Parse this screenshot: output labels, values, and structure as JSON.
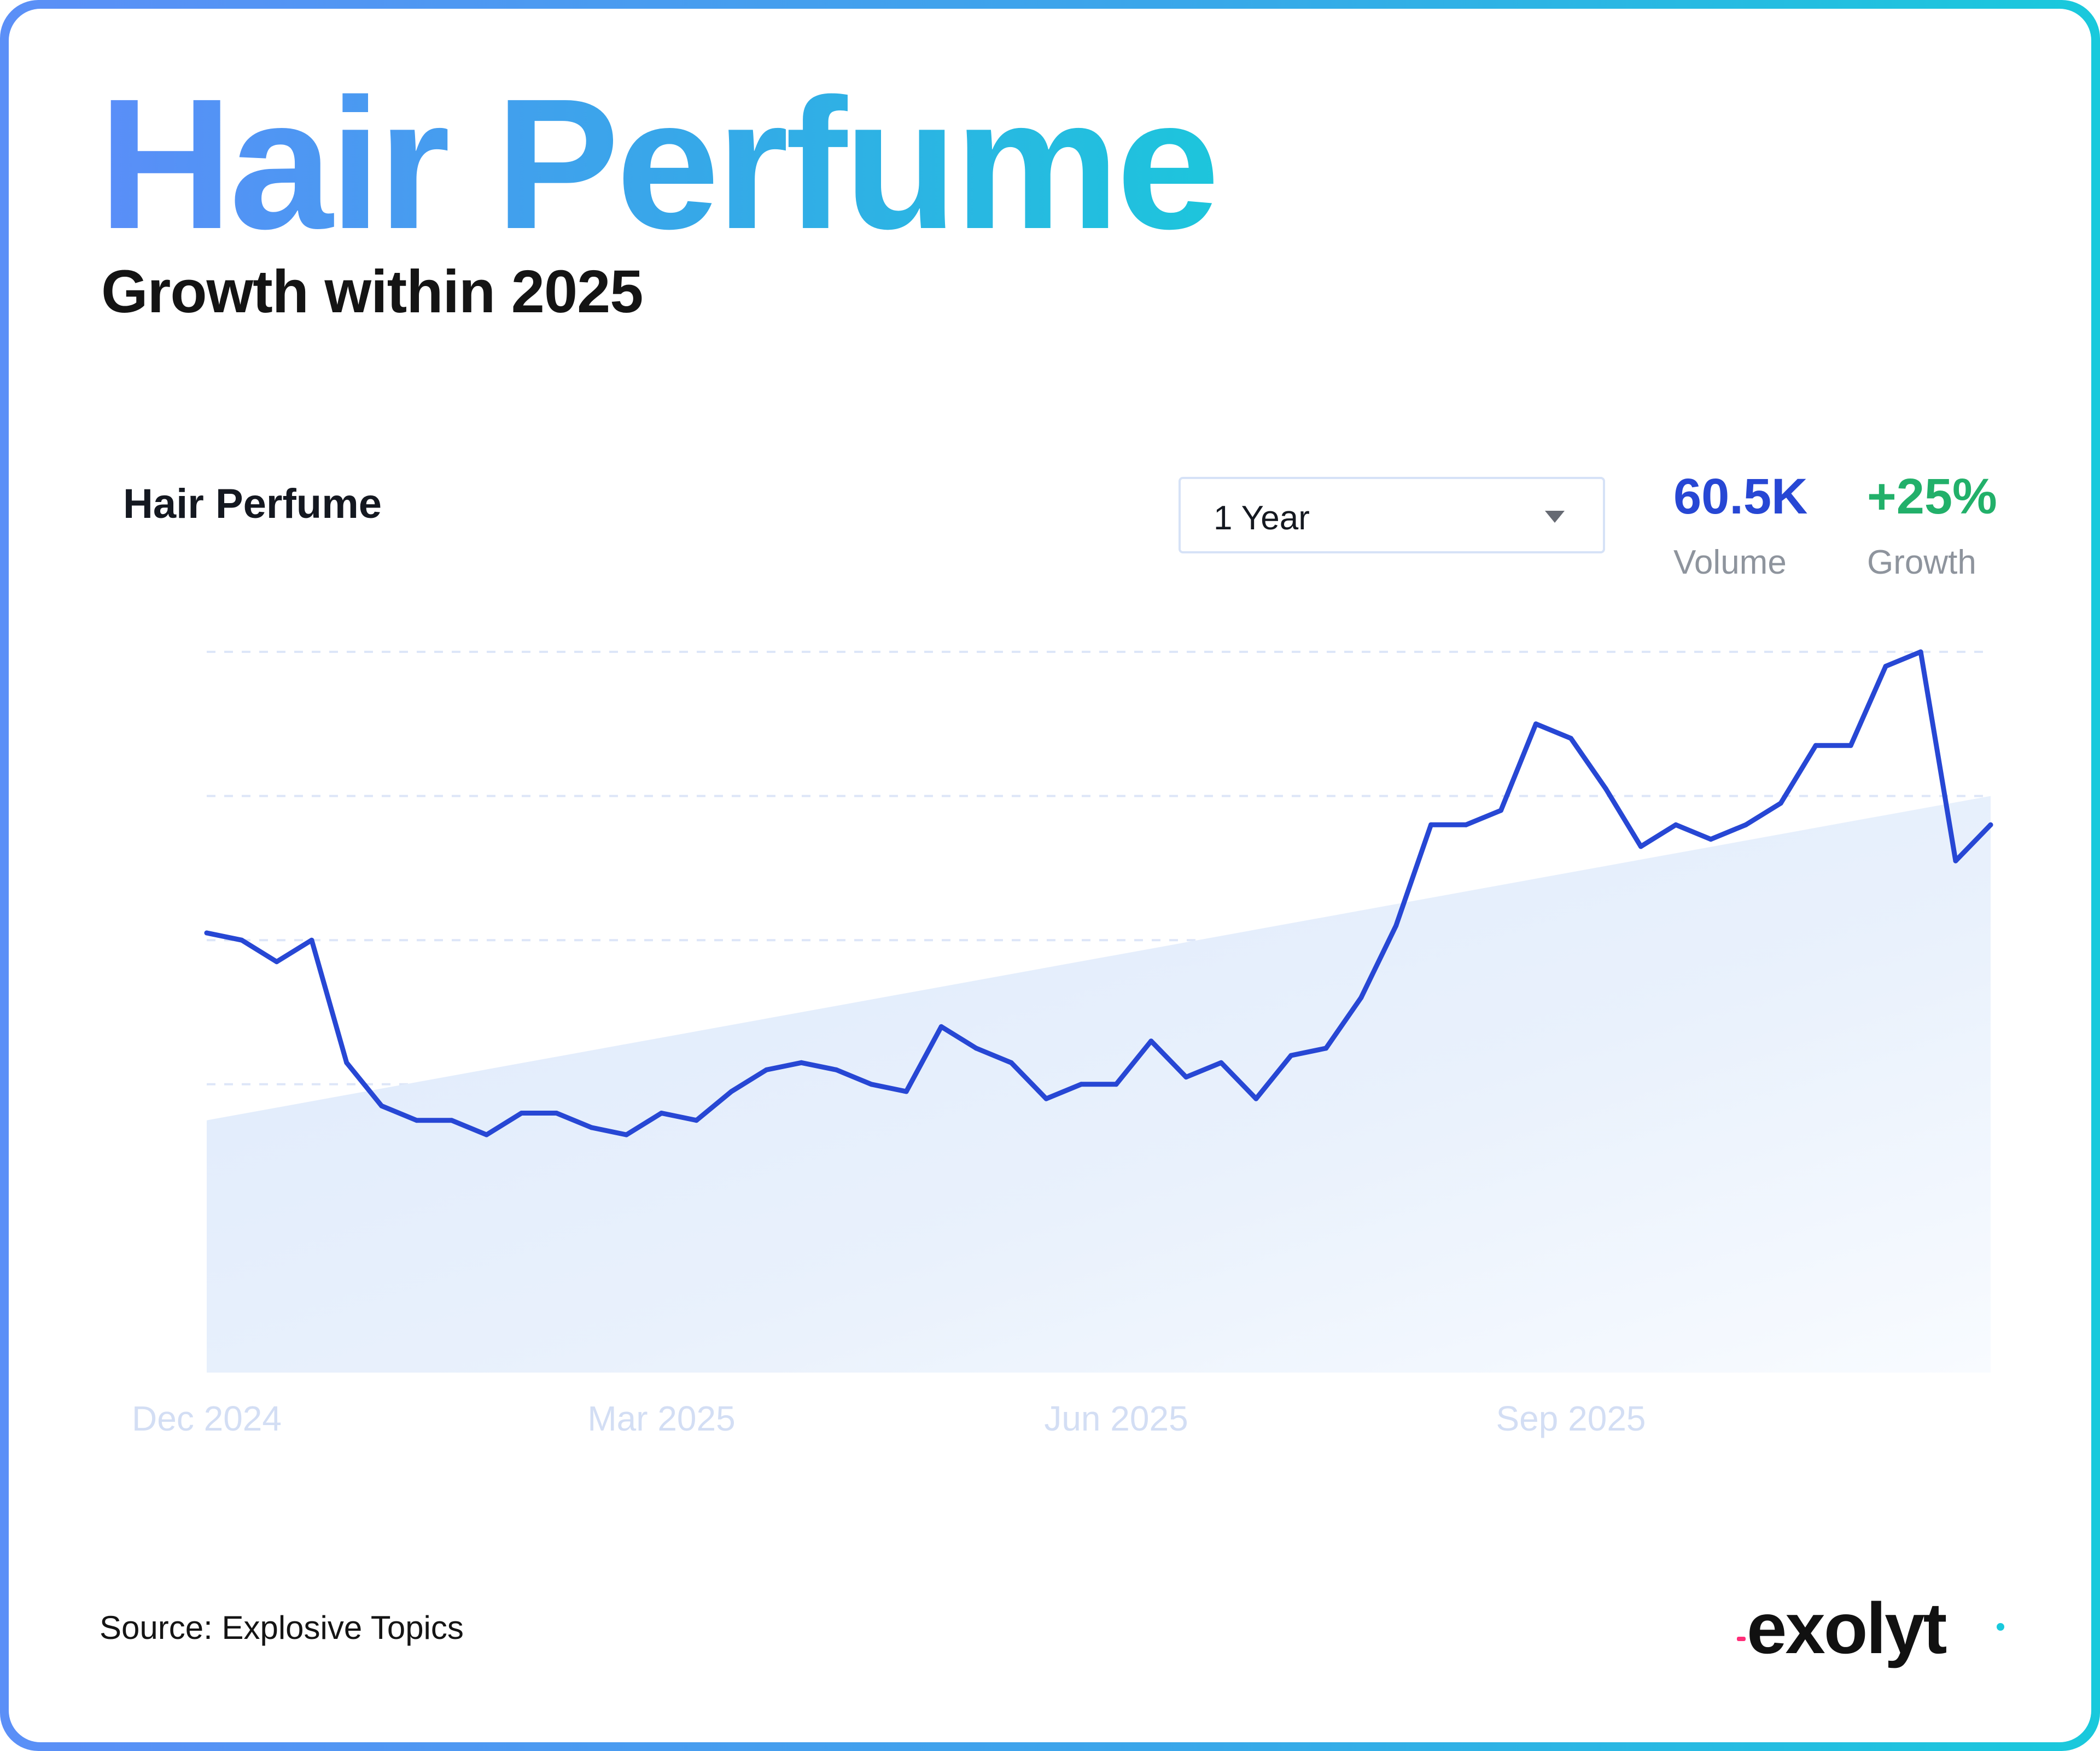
{
  "title": "Hair Perfume",
  "subtitle": "Growth within 2025",
  "card": {
    "chart_name": "Hair Perfume",
    "period_select": {
      "value": "1 Year"
    },
    "volume": {
      "value": "60.5K",
      "label": "Volume"
    },
    "growth": {
      "value": "+25%",
      "label": "Growth"
    }
  },
  "colors": {
    "line": "#2747d4",
    "volume": "#2747d4",
    "growth": "#22b06a",
    "trend_fill": "#e3edfb",
    "axis_label": "#d3def4",
    "grid": "#dde6f8"
  },
  "chart_data": {
    "type": "line",
    "title": "Hair Perfume",
    "x_tick_labels": [
      "Dec 2024",
      "Mar 2025",
      "Jun 2025",
      "Sep 2025"
    ],
    "x_tick_index": [
      0,
      13,
      26,
      39
    ],
    "ylim": [
      0,
      100
    ],
    "grid": true,
    "y_tick_labels_shown": false,
    "series": [
      {
        "values": [
          61,
          60,
          57,
          60,
          43,
          37,
          35,
          35,
          33,
          36,
          36,
          34,
          33,
          36,
          35,
          39,
          42,
          43,
          42,
          40,
          39,
          48,
          45,
          43,
          38,
          40,
          40,
          46,
          41,
          43,
          38,
          44,
          45,
          52,
          62,
          76,
          76,
          78,
          90,
          88,
          81,
          73,
          76,
          74,
          76,
          79,
          87,
          87,
          98,
          100,
          71,
          76
        ]
      }
    ],
    "trend": {
      "start": 35,
      "end": 80
    }
  },
  "source": "Source: Explosive Topics",
  "logo_text": "exolyt"
}
